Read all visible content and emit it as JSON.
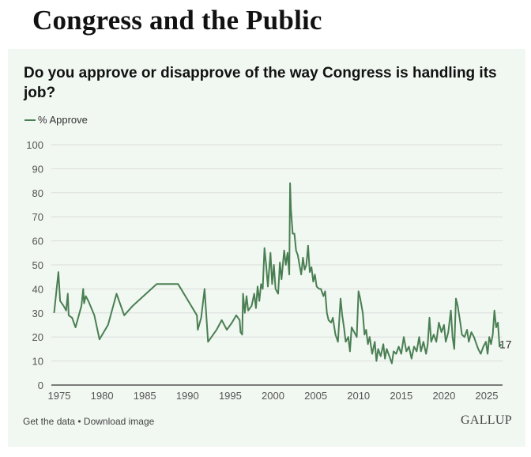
{
  "page": {
    "title": "Congress and the Public"
  },
  "footer": {
    "get_data": "Get the data",
    "separator": " • ",
    "download": "Download image",
    "brand": "GALLUP"
  },
  "colors": {
    "series": "#4a7f53",
    "panel_bg": "#f1f7f1",
    "grid": "#dcdedc",
    "axis": "#333333"
  },
  "chart_data": {
    "type": "line",
    "title": "Do you approve or disapprove of the way Congress is handling its job?",
    "xlabel": "",
    "ylabel": "",
    "xlim": [
      1973.5,
      2027.5
    ],
    "ylim": [
      0,
      100
    ],
    "x_ticks": [
      "1975",
      "1980",
      "1985",
      "1990",
      "1995",
      "2000",
      "2005",
      "2010",
      "2015",
      "2020",
      "2025"
    ],
    "y_ticks": [
      "0",
      "10",
      "20",
      "30",
      "40",
      "50",
      "60",
      "70",
      "80",
      "90",
      "100"
    ],
    "grid": true,
    "legend": "top-left",
    "end_label": "17",
    "series": [
      {
        "name": "% Approve",
        "points": [
          [
            1974.4,
            30
          ],
          [
            1974.9,
            47
          ],
          [
            1975.1,
            35
          ],
          [
            1975.5,
            33
          ],
          [
            1975.8,
            31
          ],
          [
            1976.0,
            38
          ],
          [
            1976.1,
            29
          ],
          [
            1976.5,
            28
          ],
          [
            1976.9,
            24
          ],
          [
            1977.6,
            33
          ],
          [
            1977.8,
            40
          ],
          [
            1977.9,
            34
          ],
          [
            1978.1,
            37
          ],
          [
            1978.4,
            35
          ],
          [
            1979.1,
            29
          ],
          [
            1979.7,
            19
          ],
          [
            1980.7,
            25
          ],
          [
            1981.7,
            38
          ],
          [
            1982.6,
            29
          ],
          [
            1983.6,
            33
          ],
          [
            1986.4,
            42
          ],
          [
            1988.9,
            42
          ],
          [
            1991.1,
            29
          ],
          [
            1991.2,
            23
          ],
          [
            1991.6,
            28
          ],
          [
            1992.0,
            40
          ],
          [
            1992.4,
            18
          ],
          [
            1993.4,
            23
          ],
          [
            1994.0,
            27
          ],
          [
            1994.6,
            23
          ],
          [
            1995.2,
            26
          ],
          [
            1995.7,
            29
          ],
          [
            1996.1,
            27
          ],
          [
            1996.2,
            22
          ],
          [
            1996.4,
            21
          ],
          [
            1996.5,
            38
          ],
          [
            1996.7,
            30
          ],
          [
            1996.9,
            37
          ],
          [
            1997.1,
            31
          ],
          [
            1997.5,
            33
          ],
          [
            1997.8,
            38
          ],
          [
            1998.0,
            32
          ],
          [
            1998.2,
            41
          ],
          [
            1998.4,
            35
          ],
          [
            1998.6,
            42
          ],
          [
            1998.8,
            40
          ],
          [
            1999.0,
            57
          ],
          [
            1999.2,
            50
          ],
          [
            1999.4,
            41
          ],
          [
            1999.7,
            55
          ],
          [
            1999.9,
            42
          ],
          [
            2000.1,
            50
          ],
          [
            2000.3,
            40
          ],
          [
            2000.6,
            38
          ],
          [
            2000.8,
            51
          ],
          [
            2001.0,
            44
          ],
          [
            2001.3,
            56
          ],
          [
            2001.5,
            50
          ],
          [
            2001.7,
            55
          ],
          [
            2001.9,
            46
          ],
          [
            2002.0,
            84
          ],
          [
            2002.1,
            73
          ],
          [
            2002.3,
            63
          ],
          [
            2002.5,
            63
          ],
          [
            2002.7,
            56
          ],
          [
            2002.9,
            54
          ],
          [
            2003.1,
            50
          ],
          [
            2003.3,
            46
          ],
          [
            2003.5,
            53
          ],
          [
            2003.7,
            48
          ],
          [
            2003.9,
            50
          ],
          [
            2004.1,
            58
          ],
          [
            2004.3,
            47
          ],
          [
            2004.5,
            49
          ],
          [
            2004.7,
            43
          ],
          [
            2004.9,
            46
          ],
          [
            2005.1,
            41
          ],
          [
            2005.4,
            40
          ],
          [
            2005.6,
            40
          ],
          [
            2005.9,
            37
          ],
          [
            2006.1,
            39
          ],
          [
            2006.3,
            30
          ],
          [
            2006.5,
            27
          ],
          [
            2006.8,
            26
          ],
          [
            2007.0,
            28
          ],
          [
            2007.3,
            21
          ],
          [
            2007.6,
            18
          ],
          [
            2007.9,
            36
          ],
          [
            2008.1,
            29
          ],
          [
            2008.3,
            24
          ],
          [
            2008.5,
            18
          ],
          [
            2008.8,
            20
          ],
          [
            2009.0,
            14
          ],
          [
            2009.2,
            24
          ],
          [
            2009.5,
            22
          ],
          [
            2009.8,
            20
          ],
          [
            2010.0,
            39
          ],
          [
            2010.2,
            36
          ],
          [
            2010.5,
            30
          ],
          [
            2010.7,
            21
          ],
          [
            2010.9,
            23
          ],
          [
            2011.1,
            17
          ],
          [
            2011.3,
            20
          ],
          [
            2011.6,
            13
          ],
          [
            2011.9,
            18
          ],
          [
            2012.1,
            10
          ],
          [
            2012.3,
            15
          ],
          [
            2012.6,
            12
          ],
          [
            2012.9,
            17
          ],
          [
            2013.1,
            11
          ],
          [
            2013.3,
            15
          ],
          [
            2013.6,
            12
          ],
          [
            2013.9,
            9
          ],
          [
            2014.1,
            14
          ],
          [
            2014.4,
            13
          ],
          [
            2014.7,
            16
          ],
          [
            2015.0,
            13
          ],
          [
            2015.3,
            20
          ],
          [
            2015.6,
            14
          ],
          [
            2015.9,
            16
          ],
          [
            2016.2,
            11
          ],
          [
            2016.5,
            16
          ],
          [
            2016.8,
            14
          ],
          [
            2017.1,
            20
          ],
          [
            2017.3,
            14
          ],
          [
            2017.6,
            18
          ],
          [
            2017.9,
            13
          ],
          [
            2018.1,
            17
          ],
          [
            2018.3,
            28
          ],
          [
            2018.5,
            18
          ],
          [
            2018.8,
            21
          ],
          [
            2019.1,
            18
          ],
          [
            2019.4,
            26
          ],
          [
            2019.7,
            22
          ],
          [
            2020.0,
            25
          ],
          [
            2020.2,
            18
          ],
          [
            2020.5,
            22
          ],
          [
            2020.8,
            31
          ],
          [
            2021.0,
            20
          ],
          [
            2021.2,
            15
          ],
          [
            2021.4,
            36
          ],
          [
            2021.6,
            33
          ],
          [
            2021.9,
            26
          ],
          [
            2022.1,
            21
          ],
          [
            2022.4,
            20
          ],
          [
            2022.7,
            23
          ],
          [
            2022.9,
            18
          ],
          [
            2023.2,
            22
          ],
          [
            2023.5,
            20
          ],
          [
            2023.8,
            17
          ],
          [
            2024.0,
            15
          ],
          [
            2024.3,
            13
          ],
          [
            2024.6,
            16
          ],
          [
            2024.9,
            18
          ],
          [
            2025.1,
            13
          ],
          [
            2025.3,
            20
          ],
          [
            2025.5,
            17
          ],
          [
            2025.7,
            21
          ],
          [
            2025.9,
            31
          ],
          [
            2026.1,
            24
          ],
          [
            2026.3,
            26
          ],
          [
            2026.5,
            16
          ],
          [
            2026.7,
            17
          ]
        ]
      }
    ]
  }
}
